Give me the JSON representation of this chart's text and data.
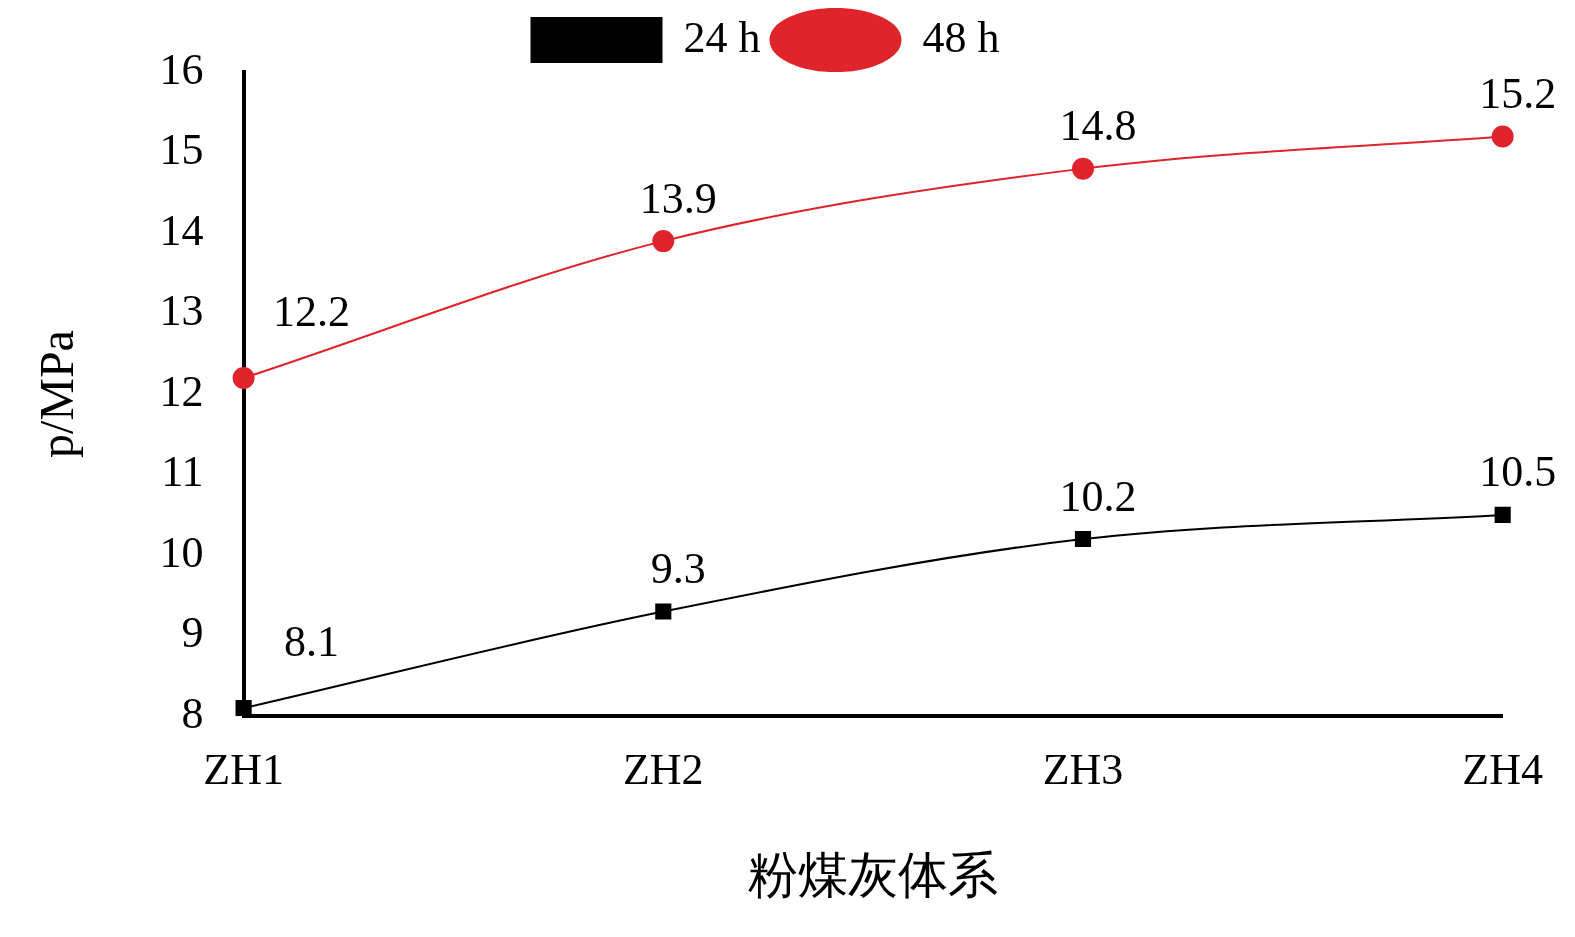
{
  "chart_data": {
    "type": "line",
    "xlabel": "粉煤灰体系",
    "ylabel": "p/MPa",
    "categories": [
      "ZH1",
      "ZH2",
      "ZH3",
      "ZH4"
    ],
    "series": [
      {
        "name": "24 h",
        "color": "#000000",
        "marker": "square",
        "values": [
          8.1,
          9.3,
          10.2,
          10.5
        ]
      },
      {
        "name": "48 h",
        "color": "#e0242b",
        "marker": "circle",
        "values": [
          12.2,
          13.9,
          14.8,
          15.2
        ]
      }
    ],
    "ylim": [
      8,
      16
    ],
    "yticks": [
      8,
      9,
      10,
      11,
      12,
      13,
      14,
      15,
      16
    ],
    "grid": false,
    "legend": "top",
    "data_labels": true,
    "line_style": "solid"
  }
}
